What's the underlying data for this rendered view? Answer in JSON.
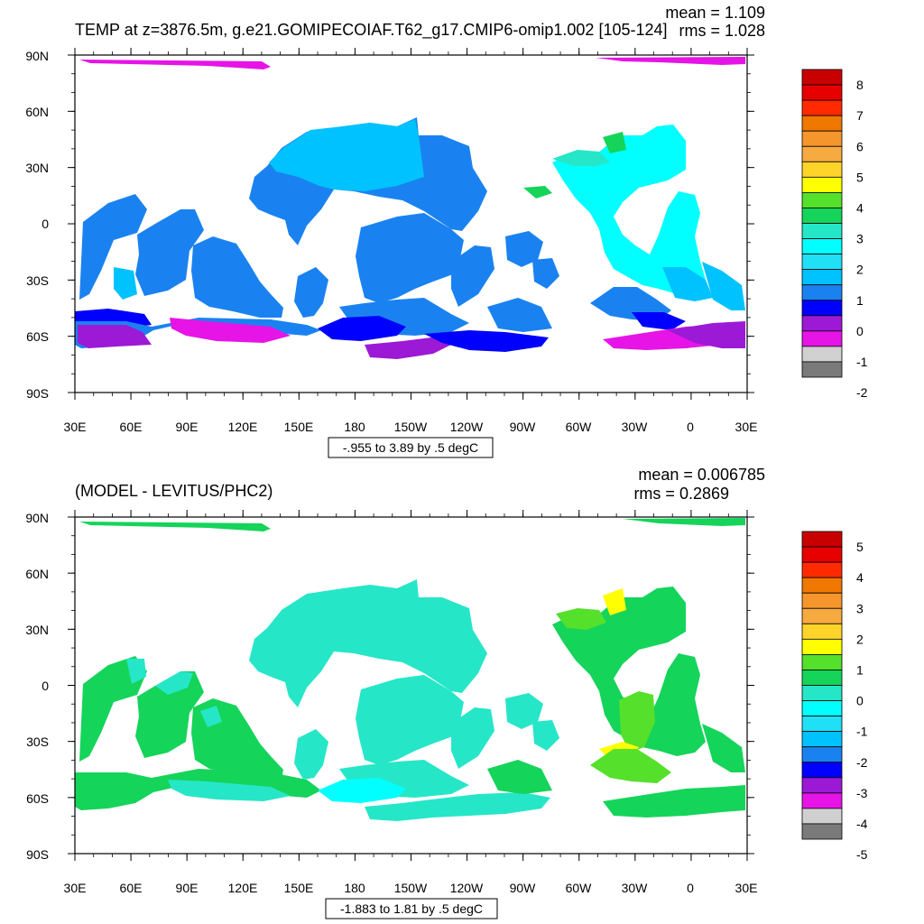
{
  "panels": [
    {
      "title": "TEMP at z=3876.5m, g.e21.GOMIPECOIAF.T62_g17.CMIP6-omip1.002 [105-124]",
      "mean_label": "mean = 1.109",
      "rms_label": "rms = 1.028",
      "range_label": "-.955 to 3.89 by .5 degC",
      "colorbar_labels": [
        "8",
        "7",
        "6",
        "5",
        "4",
        "3",
        "2",
        "1",
        "0",
        "-1",
        "-2"
      ],
      "colorbar_colors": [
        "#c80000",
        "#e60000",
        "#ff2a00",
        "#f07800",
        "#f5962d",
        "#f7aa40",
        "#fed42a",
        "#ffff00",
        "#55e02b",
        "#14d45a",
        "#26e6c8",
        "#00fffe",
        "#20e0f5",
        "#00c2ff",
        "#1a82f0",
        "#0000ff",
        "#9c19d6",
        "#e614e6",
        "#d0d0d0",
        "#7a7a7a"
      ]
    },
    {
      "title": "(MODEL - LEVITUS/PHC2)",
      "mean_label": "mean = 0.006785",
      "rms_label": "rms = 0.2869",
      "range_label": "-1.883 to 1.81 by .5 degC",
      "colorbar_labels": [
        "5",
        "4",
        "3",
        "2",
        "1",
        "0",
        "-1",
        "-2",
        "-3",
        "-4",
        "-5"
      ],
      "colorbar_colors": [
        "#c80000",
        "#e60000",
        "#ff2a00",
        "#f07800",
        "#f5962d",
        "#f7aa40",
        "#fed42a",
        "#ffff00",
        "#55e02b",
        "#14d45a",
        "#26e6c8",
        "#00fffe",
        "#20e0f5",
        "#00c2ff",
        "#1a82f0",
        "#0000ff",
        "#9c19d6",
        "#e614e6",
        "#d0d0d0",
        "#7a7a7a"
      ]
    }
  ],
  "lat_labels": [
    "90N",
    "60N",
    "30N",
    "0",
    "30S",
    "60S",
    "90S"
  ],
  "lon_labels": [
    "30E",
    "60E",
    "90E",
    "120E",
    "150E",
    "180",
    "150W",
    "120W",
    "90W",
    "60W",
    "30W",
    "0",
    "30E"
  ],
  "chart_data": {
    "type": "heatmap",
    "projection": "cylindrical-equidistant",
    "lon_range": [
      30,
      390
    ],
    "lat_range": [
      -90,
      90
    ],
    "colors": {
      "land": "#ffffff",
      "top": {
        "mid_blue": "#1a82f0",
        "light_blue": "#00c2ff",
        "cyan": "#00fffe",
        "aqua": "#26e6c8",
        "dark_blue": "#0000ff",
        "purple": "#9c19d6",
        "magenta": "#e614e6",
        "green": "#14d45a"
      },
      "bottom": {
        "aqua": "#26e6c8",
        "green": "#14d45a",
        "lime": "#55e02b",
        "yellow": "#ffff00",
        "cyan": "#00fffe"
      }
    }
  }
}
